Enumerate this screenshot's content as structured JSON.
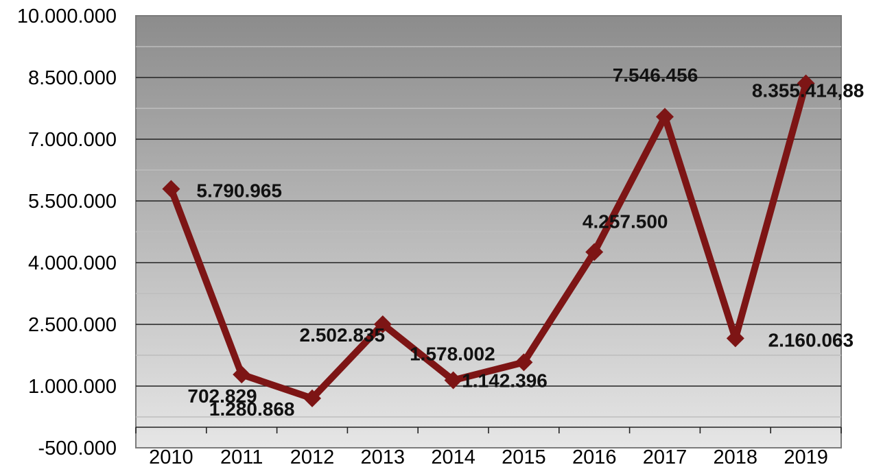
{
  "chart_data": {
    "type": "line",
    "title": "",
    "xlabel": "",
    "ylabel": "",
    "categories": [
      "2010",
      "2011",
      "2012",
      "2013",
      "2014",
      "2015",
      "2016",
      "2017",
      "2018",
      "2019"
    ],
    "series": [
      {
        "values": [
          5790965,
          1280868,
          702829,
          2502835,
          1142396,
          1578002,
          4257500,
          7546456,
          2160063,
          8355414.88
        ],
        "labels": [
          "5.790.965",
          "1.280.868",
          "702.829",
          "2.502.835",
          "1.142.396",
          "1.578.002",
          "4.257.500",
          "7.546.456",
          "2.160.063",
          "8.355.414,88"
        ],
        "color": "#7d1515",
        "marker": "diamond"
      }
    ],
    "ylim": [
      -500000,
      10000000
    ],
    "yticks": [
      -500000,
      1000000,
      2500000,
      4000000,
      5500000,
      7000000,
      8500000,
      10000000
    ],
    "ytick_labels": [
      "-500.000",
      "1.000.000",
      "2.500.000",
      "4.000.000",
      "5.500.000",
      "7.000.000",
      "8.500.000",
      "10.000.000"
    ],
    "grid": true,
    "legend": "none",
    "background": "gradient-gray"
  }
}
